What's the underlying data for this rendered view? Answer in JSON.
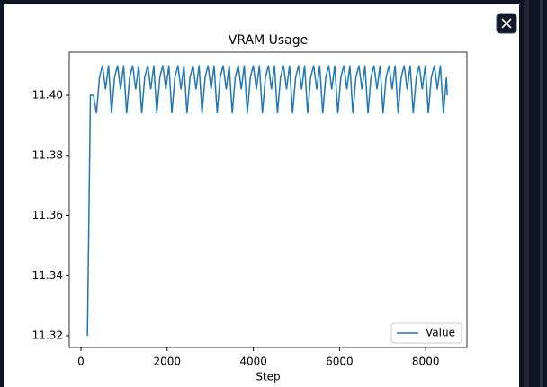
{
  "chart_data": {
    "type": "line",
    "title": "VRAM Usage",
    "xlabel": "Step",
    "x": [
      150,
      220,
      290,
      360,
      430,
      500,
      570,
      640,
      710,
      780,
      850,
      920,
      990,
      1060,
      1130,
      1200,
      1270,
      1340,
      1410,
      1480,
      1550,
      1620,
      1690,
      1760,
      1830,
      1900,
      1970,
      2040,
      2110,
      2180,
      2250,
      2320,
      2390,
      2460,
      2530,
      2600,
      2670,
      2740,
      2810,
      2880,
      2950,
      3020,
      3090,
      3160,
      3230,
      3300,
      3370,
      3440,
      3510,
      3580,
      3650,
      3720,
      3790,
      3860,
      3930,
      4000,
      4070,
      4140,
      4210,
      4280,
      4350,
      4420,
      4490,
      4560,
      4630,
      4700,
      4770,
      4840,
      4910,
      4980,
      5050,
      5120,
      5190,
      5260,
      5330,
      5400,
      5470,
      5540,
      5610,
      5680,
      5750,
      5820,
      5890,
      5960,
      6030,
      6100,
      6170,
      6240,
      6310,
      6380,
      6450,
      6520,
      6590,
      6660,
      6730,
      6800,
      6870,
      6940,
      7010,
      7080,
      7150,
      7220,
      7290,
      7360,
      7430,
      7500,
      7570,
      7640,
      7710,
      7780,
      7850,
      7920,
      7990,
      8060,
      8130,
      8200,
      8270,
      8340,
      8410,
      8480,
      8500
    ],
    "series": [
      {
        "name": "Value",
        "color": "#1f77b4",
        "values": [
          11.32,
          11.4,
          11.4,
          11.394,
          11.406,
          11.41,
          11.402,
          11.41,
          11.394,
          11.406,
          11.41,
          11.402,
          11.41,
          11.394,
          11.406,
          11.41,
          11.402,
          11.41,
          11.394,
          11.406,
          11.41,
          11.402,
          11.41,
          11.394,
          11.406,
          11.41,
          11.402,
          11.41,
          11.394,
          11.406,
          11.41,
          11.402,
          11.41,
          11.394,
          11.406,
          11.41,
          11.402,
          11.41,
          11.394,
          11.406,
          11.41,
          11.402,
          11.41,
          11.394,
          11.406,
          11.41,
          11.402,
          11.41,
          11.394,
          11.406,
          11.41,
          11.402,
          11.41,
          11.394,
          11.406,
          11.41,
          11.402,
          11.41,
          11.394,
          11.406,
          11.41,
          11.402,
          11.41,
          11.394,
          11.406,
          11.41,
          11.402,
          11.41,
          11.394,
          11.406,
          11.41,
          11.402,
          11.41,
          11.394,
          11.406,
          11.41,
          11.402,
          11.41,
          11.394,
          11.406,
          11.41,
          11.402,
          11.41,
          11.394,
          11.406,
          11.41,
          11.402,
          11.41,
          11.394,
          11.406,
          11.41,
          11.402,
          11.41,
          11.394,
          11.406,
          11.41,
          11.402,
          11.41,
          11.394,
          11.406,
          11.41,
          11.402,
          11.41,
          11.394,
          11.406,
          11.41,
          11.402,
          11.41,
          11.394,
          11.406,
          11.41,
          11.402,
          11.41,
          11.394,
          11.406,
          11.41,
          11.402,
          11.41,
          11.394,
          11.406,
          11.4
        ]
      }
    ],
    "xlim": [
      -271,
      8956
    ],
    "xticks": [
      0,
      2000,
      4000,
      6000,
      8000
    ],
    "ylim": [
      11.3161,
      11.4144
    ],
    "yticks": [
      11.32,
      11.34,
      11.36,
      11.38,
      {
        "value": 11.4,
        "label": "11.40"
      }
    ],
    "legend": "lower right"
  }
}
